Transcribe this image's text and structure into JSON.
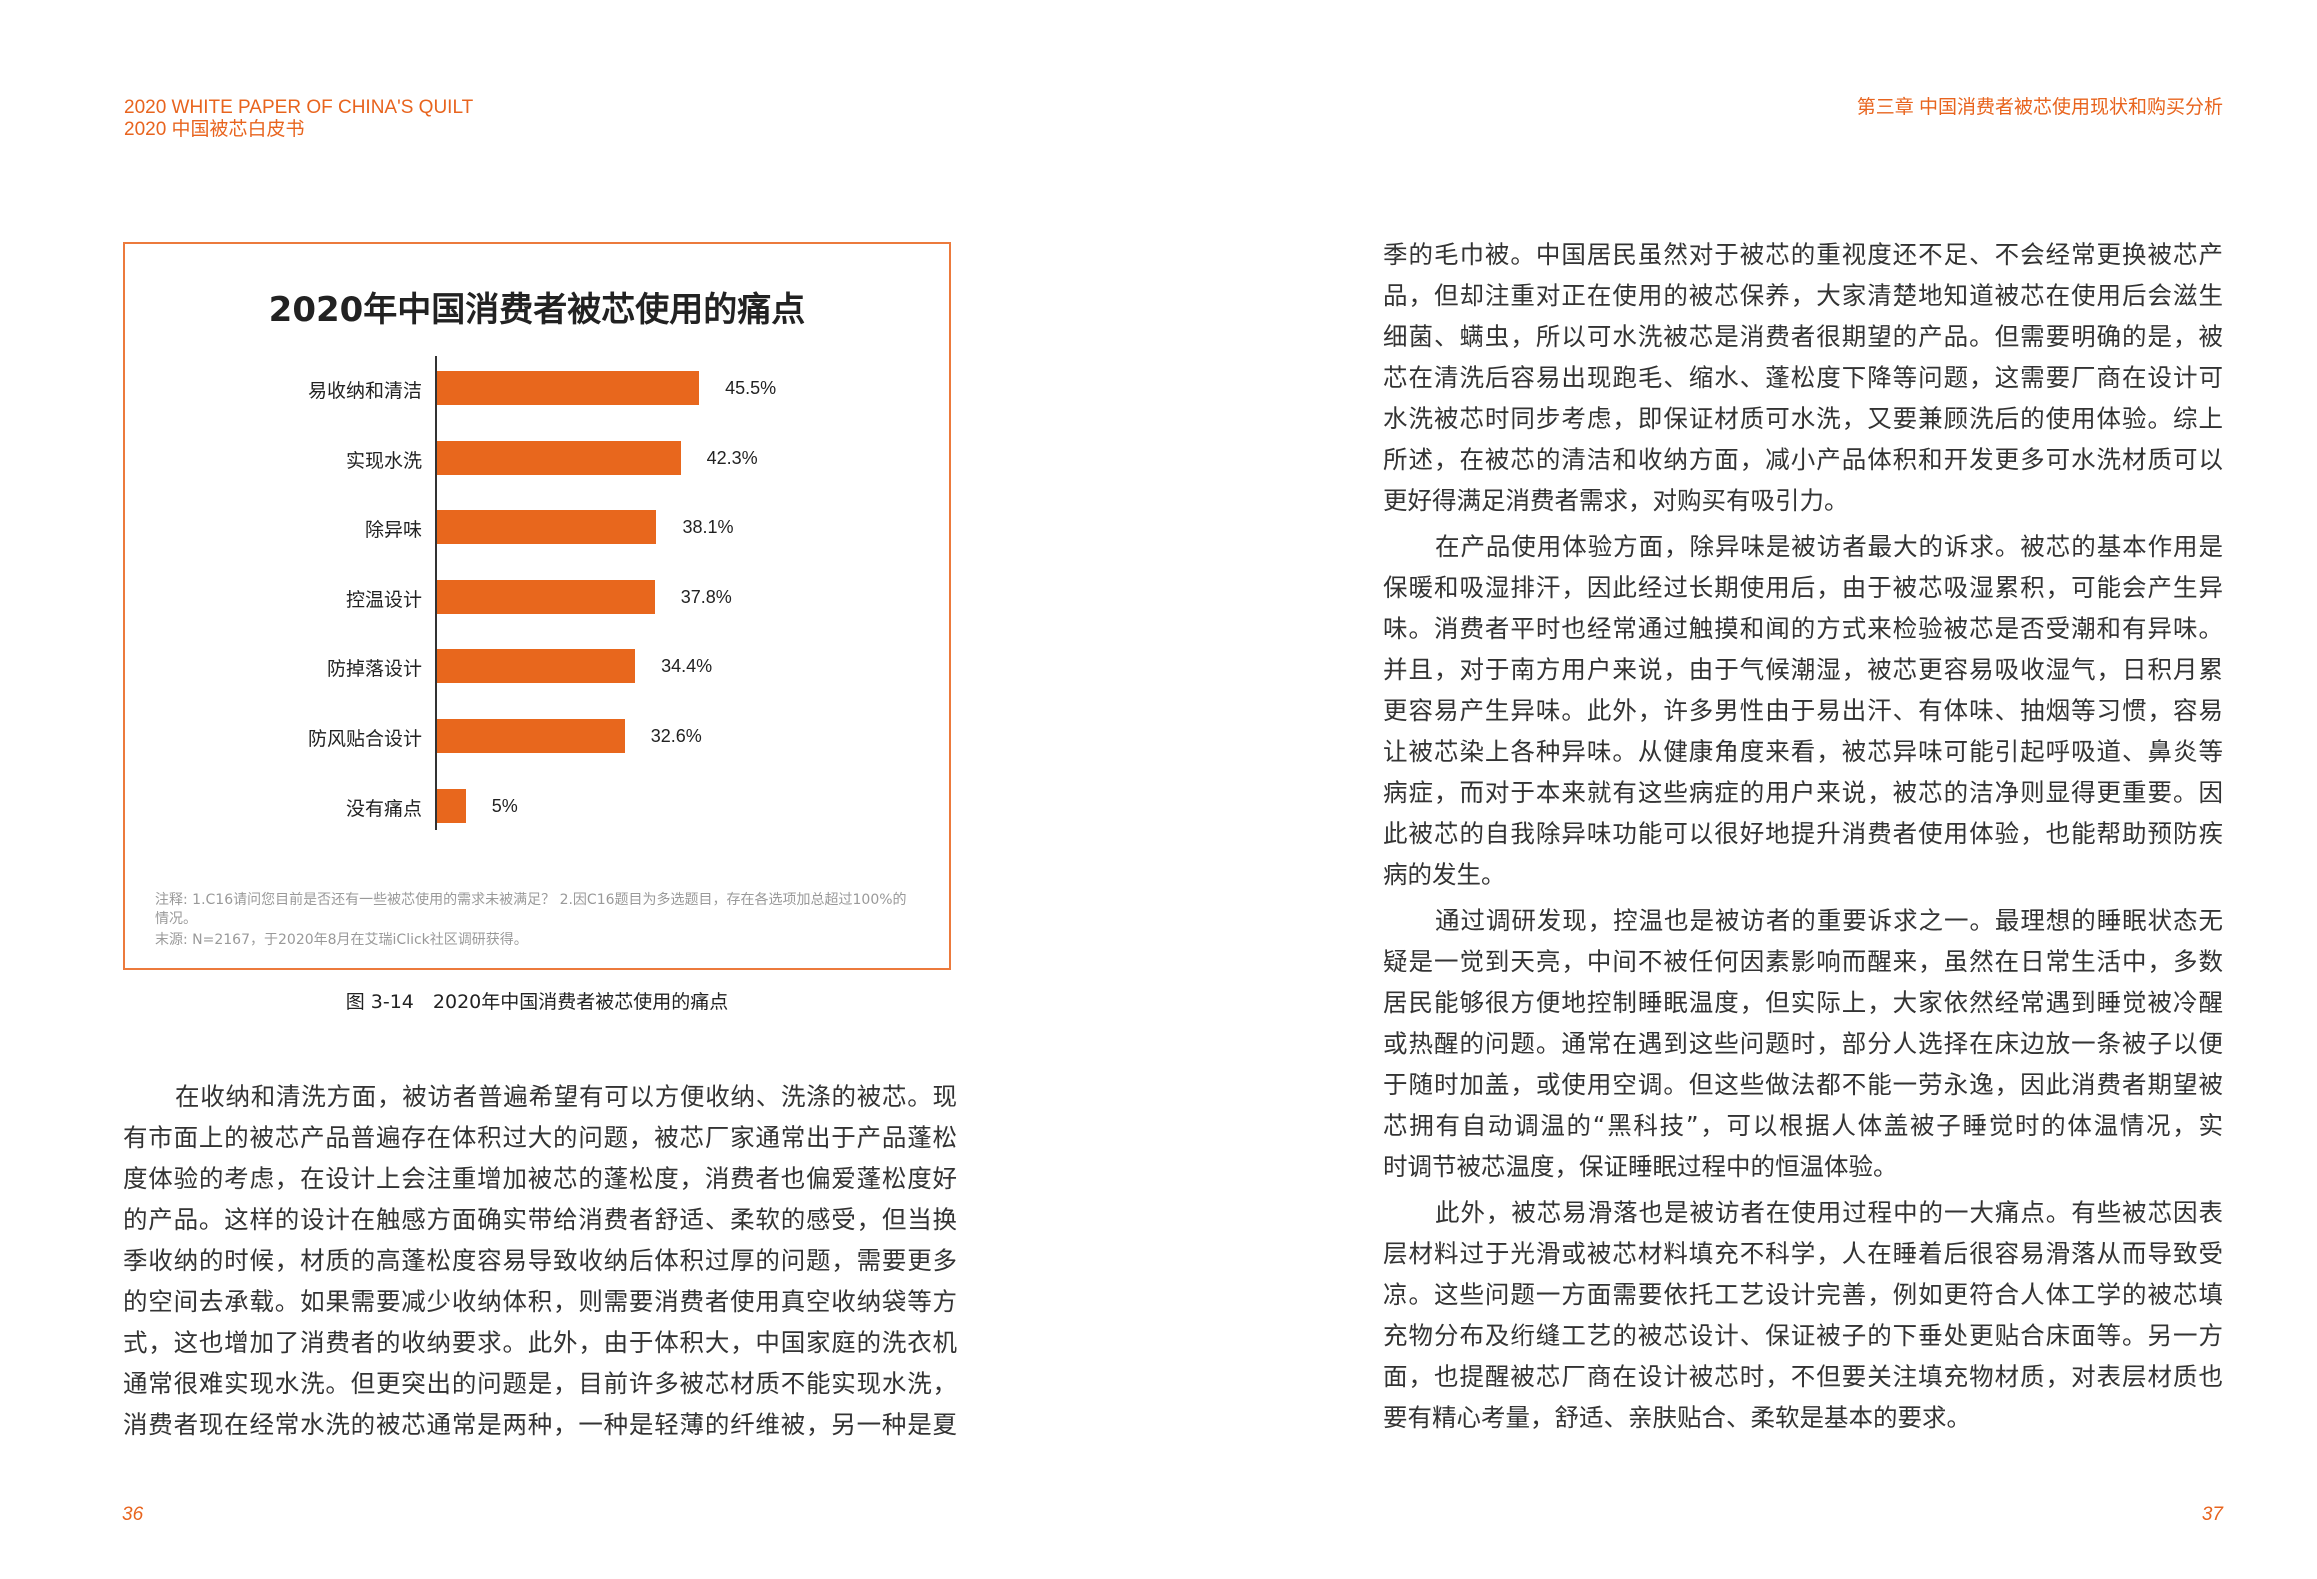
{
  "header": {
    "left_en": "2020 WHITE PAPER OF CHINA'S QUILT",
    "left_cn": "2020 中国被芯白皮书",
    "right": "第三章 中国消费者被芯使用现状和购买分析"
  },
  "colors": {
    "accent": "#e8641e",
    "bar": "#e8671d",
    "frame": "#ec7a3c"
  },
  "chart_data": {
    "type": "bar",
    "orientation": "horizontal",
    "title": "2020年中国消费者被芯使用的痛点",
    "categories": [
      "易收纳和清洁",
      "实现水洗",
      "除异味",
      "控温设计",
      "防掉落设计",
      "防风贴合设计",
      "没有痛点"
    ],
    "values": [
      45.5,
      42.3,
      38.1,
      37.8,
      34.4,
      32.6,
      5
    ],
    "value_labels": [
      "45.5%",
      "42.3%",
      "38.1%",
      "37.8%",
      "34.4%",
      "32.6%",
      "5%"
    ],
    "unit": "%",
    "grid": false,
    "notes": [
      "注释: 1.C16请问您目前是否还有一些被芯使用的需求未被满足？ 2.因C16题目为多选题目，存在各选项加总超过100%的情况。",
      "末源: N=2167，于2020年8月在艾瑞iClick社区调研获得。"
    ]
  },
  "figure_caption": "图 3-14　2020年中国消费者被芯使用的痛点",
  "left_column": [
    {
      "indent": true,
      "lines": [
        "在收纳和清洗方面，被访者普遍希望有可以方便收纳、洗涤的被芯。现",
        "有市面上的被芯产品普遍存在体积过大的问题，被芯厂家通常出于产品蓬松",
        "度体验的考虑，在设计上会注重增加被芯的蓬松度，消费者也偏爱蓬松度好",
        "的产品。这样的设计在触感方面确实带给消费者舒适、柔软的感受，但当换",
        "季收纳的时候，材质的高蓬松度容易导致收纳后体积过厚的问题，需要更多",
        "的空间去承载。如果需要减少收纳体积，则需要消费者使用真空收纳袋等方",
        "式，这也增加了消费者的收纳要求。此外，由于体积大，中国家庭的洗衣机",
        "通常很难实现水洗。但更突出的问题是，目前许多被芯材质不能实现水洗，",
        "消费者现在经常水洗的被芯通常是两种，一种是轻薄的纤维被，另一种是夏"
      ],
      "continues": true
    }
  ],
  "right_column": [
    {
      "indent": false,
      "lines": [
        "季的毛巾被。中国居民虽然对于被芯的重视度还不足、不会经常更换被芯产",
        "品，但却注重对正在使用的被芯保养，大家清楚地知道被芯在使用后会滋生",
        "细菌、螨虫，所以可水洗被芯是消费者很期望的产品。但需要明确的是，被",
        "芯在清洗后容易出现跑毛、缩水、蓬松度下降等问题，这需要厂商在设计可",
        "水洗被芯时同步考虑，即保证材质可水洗，又要兼顾洗后的使用体验。综上",
        "所述，在被芯的清洁和收纳方面，减小产品体积和开发更多可水洗材质可以",
        "更好得满足消费者需求，对购买有吸引力。"
      ]
    },
    {
      "indent": true,
      "lines": [
        "在产品使用体验方面，除异味是被访者最大的诉求。被芯的基本作用是",
        "保暖和吸湿排汗，因此经过长期使用后，由于被芯吸湿累积，可能会产生异",
        "味。消费者平时也经常通过触摸和闻的方式来检验被芯是否受潮和有异味。",
        "并且，对于南方用户来说，由于气候潮湿，被芯更容易吸收湿气，日积月累",
        "更容易产生异味。此外，许多男性由于易出汗、有体味、抽烟等习惯，容易",
        "让被芯染上各种异味。从健康角度来看，被芯异味可能引起呼吸道、鼻炎等",
        "病症，而对于本来就有这些病症的用户来说，被芯的洁净则显得更重要。因",
        "此被芯的自我除异味功能可以很好地提升消费者使用体验，也能帮助预防疾",
        "病的发生。"
      ]
    },
    {
      "indent": true,
      "lines": [
        "通过调研发现，控温也是被访者的重要诉求之一。最理想的睡眠状态无",
        "疑是一觉到天亮，中间不被任何因素影响而醒来，虽然在日常生活中，多数",
        "居民能够很方便地控制睡眠温度，但实际上，大家依然经常遇到睡觉被冷醒",
        "或热醒的问题。通常在遇到这些问题时，部分人选择在床边放一条被子以便",
        "于随时加盖，或使用空调。但这些做法都不能一劳永逸，因此消费者期望被",
        "芯拥有自动调温的“黑科技”，可以根据人体盖被子睡觉时的体温情况，实",
        "时调节被芯温度，保证睡眠过程中的恒温体验。"
      ]
    },
    {
      "indent": true,
      "lines": [
        "此外，被芯易滑落也是被访者在使用过程中的一大痛点。有些被芯因表",
        "层材料过于光滑或被芯材料填充不科学，人在睡着后很容易滑落从而导致受",
        "凉。这些问题一方面需要依托工艺设计完善，例如更符合人体工学的被芯填",
        "充物分布及绗缝工艺的被芯设计、保证被子的下垂处更贴合床面等。另一方",
        "面，也提醒被芯厂商在设计被芯时，不但要关注填充物材质，对表层材质也",
        "要有精心考量，舒适、亲肤贴合、柔软是基本的要求。"
      ]
    }
  ],
  "page_numbers": {
    "left": "36",
    "right": "37"
  }
}
